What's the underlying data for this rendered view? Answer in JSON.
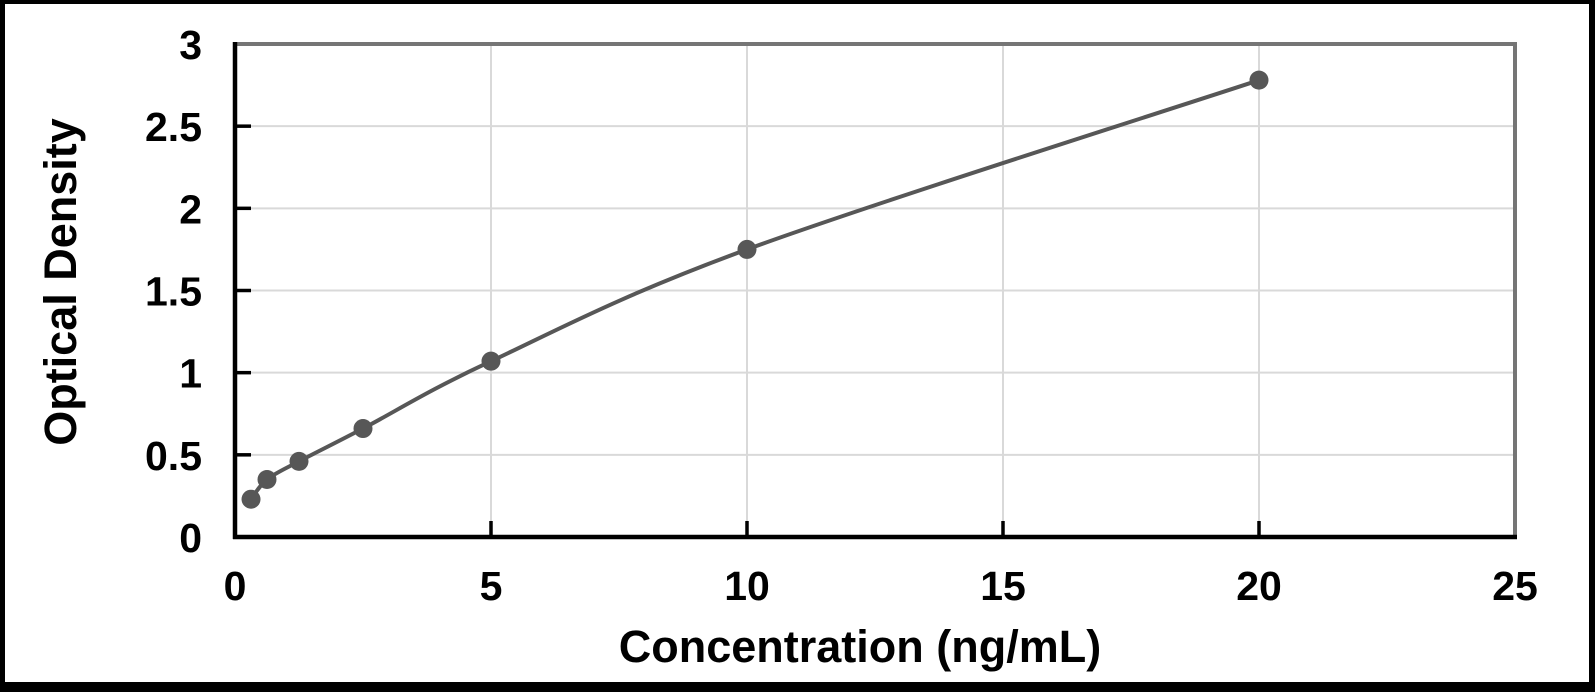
{
  "chart_data": {
    "type": "line",
    "title": "",
    "xlabel": "Concentration (ng/mL)",
    "ylabel": "Optical Density",
    "x": [
      0.313,
      0.625,
      1.25,
      2.5,
      5,
      10,
      20
    ],
    "y": [
      0.23,
      0.35,
      0.46,
      0.66,
      1.07,
      1.75,
      2.78
    ],
    "xlim": [
      0,
      25
    ],
    "ylim": [
      0,
      3
    ],
    "x_ticks": [
      0,
      5,
      10,
      15,
      20,
      25
    ],
    "y_ticks": [
      0,
      0.5,
      1,
      1.5,
      2,
      2.5,
      3
    ],
    "grid": true,
    "legend": "none",
    "marker": "circle",
    "line_color": "#575757",
    "marker_color": "#575757",
    "gridline_color": "#d9d9d9",
    "axis_color": "#000000",
    "plot_border_color": "#757575",
    "frame_color": "#000000",
    "background_color": "#ffffff"
  }
}
